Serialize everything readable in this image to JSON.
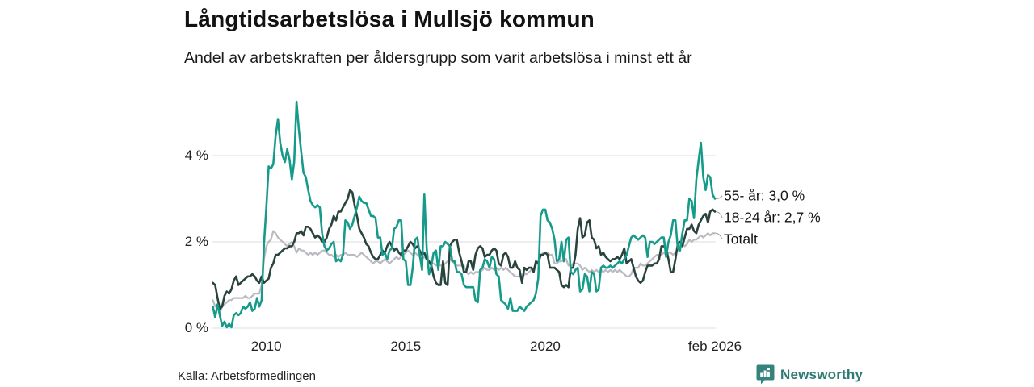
{
  "header": {
    "title": "Långtidsarbetslösa i Mullsjö kommun",
    "subtitle": "Andel av arbetskraften per åldersgrupp som varit arbetslösa i minst ett år"
  },
  "footer": {
    "source": "Källa: Arbetsförmedlingen",
    "brand": "Newsworthy"
  },
  "colors": {
    "series_55": "#169b8a",
    "series_1824": "#29433d",
    "series_total": "#b9b9c2",
    "grid": "#e4e4e4",
    "leader": "#999999",
    "brand_teal": "#35847c"
  },
  "chart_data": {
    "type": "line",
    "title": "Långtidsarbetslösa i Mullsjö kommun",
    "subtitle": "Andel av arbetskraften per åldersgrupp som varit arbetslösa i minst ett år",
    "x_start": "2008-02",
    "x_end": "2026-02",
    "x_interval": "monthly",
    "ylim": [
      0,
      5.5
    ],
    "grid": "horizontal",
    "legend_position": "right-end-labels",
    "yticks": [
      {
        "label": "0 %",
        "value": 0
      },
      {
        "label": "2 %",
        "value": 2
      },
      {
        "label": "4 %",
        "value": 4
      }
    ],
    "xticks": [
      {
        "label": "2010",
        "month_index": 23
      },
      {
        "label": "2015",
        "month_index": 83
      },
      {
        "label": "2020",
        "month_index": 143
      },
      {
        "label": "feb 2026",
        "month_index": 216
      }
    ],
    "end_labels": [
      {
        "text": "55- år: 3,0 %",
        "series": "55- år",
        "value": 3.0
      },
      {
        "text": "18-24 år: 2,7 %",
        "series": "18-24 år",
        "value": 2.7
      },
      {
        "text": "Totalt",
        "series": "Totalt",
        "value": 2.2
      }
    ],
    "series": [
      {
        "name": "55- år",
        "color": "#169b8a",
        "width": 2.6,
        "end_value": 3.0,
        "values": [
          0.5,
          0.25,
          0.55,
          0.3,
          0.05,
          0.15,
          0.02,
          0.1,
          0.02,
          0.3,
          0.35,
          0.3,
          0.35,
          0.5,
          0.45,
          0.5,
          0.6,
          0.4,
          0.45,
          0.7,
          0.5,
          0.65,
          1.95,
          2.8,
          3.75,
          3.7,
          3.8,
          4.45,
          4.85,
          4.3,
          4.0,
          3.85,
          4.15,
          3.9,
          3.45,
          3.85,
          5.25,
          4.6,
          4.1,
          3.6,
          3.5,
          3.2,
          2.95,
          2.85,
          2.8,
          2.85,
          2.8,
          2.2,
          1.9,
          1.8,
          1.85,
          1.95,
          2.0,
          1.55,
          1.6,
          1.55,
          1.7,
          2.5,
          2.45,
          2.3,
          2.4,
          2.6,
          2.8,
          3.05,
          2.95,
          2.9,
          2.9,
          2.75,
          2.6,
          2.6,
          2.55,
          2.1,
          2.1,
          1.7,
          1.75,
          1.6,
          1.8,
          1.85,
          2.3,
          2.35,
          2.5,
          2.5,
          1.6,
          1.55,
          1.0,
          1.0,
          1.4,
          2.05,
          2.1,
          1.7,
          1.35,
          3.1,
          1.85,
          1.25,
          1.45,
          1.75,
          1.8,
          1.35,
          1.9,
          1.9,
          2.0,
          1.95,
          1.9,
          1.55,
          1.55,
          1.3,
          1.3,
          1.25,
          1.0,
          0.95,
          0.95,
          0.95,
          0.95,
          0.65,
          0.6,
          1.35,
          1.4,
          1.6,
          1.55,
          1.4,
          1.65,
          1.6,
          1.25,
          1.2,
          0.65,
          0.6,
          0.55,
          0.45,
          0.7,
          0.4,
          0.4,
          0.4,
          0.5,
          0.45,
          0.4,
          0.5,
          0.55,
          0.6,
          0.65,
          0.8,
          1.15,
          2.6,
          2.75,
          2.75,
          2.5,
          2.45,
          2.3,
          2.05,
          1.55,
          1.6,
          2.0,
          1.55,
          2.05,
          2.1,
          1.3,
          1.25,
          1.35,
          1.4,
          0.85,
          0.9,
          1.25,
          1.2,
          0.85,
          1.3,
          1.25,
          0.85,
          0.9,
          1.4,
          1.45,
          1.4,
          1.4,
          1.45,
          1.4,
          1.45,
          1.5,
          1.55,
          1.5,
          1.6,
          1.7,
          1.9,
          2.1,
          2.15,
          2.1,
          2.05,
          2.1,
          2.15,
          2.1,
          1.65,
          2.0,
          2.0,
          1.95,
          2.0,
          2.05,
          2.1,
          2.1,
          1.65,
          2.0,
          2.15,
          2.5,
          2.5,
          1.85,
          1.8,
          2.2,
          2.5,
          2.5,
          3.0,
          2.95,
          2.55,
          3.45,
          3.9,
          4.3,
          3.5,
          3.2,
          3.55,
          3.5,
          3.1,
          3.0
        ]
      },
      {
        "name": "18-24 år",
        "color": "#29433d",
        "width": 2.6,
        "end_value": 2.7,
        "values": [
          1.05,
          1.0,
          0.7,
          0.45,
          0.5,
          0.75,
          0.85,
          0.8,
          0.9,
          1.1,
          1.2,
          1.0,
          1.05,
          1.1,
          1.15,
          1.2,
          1.2,
          1.25,
          1.2,
          1.1,
          1.05,
          1.2,
          1.05,
          1.1,
          1.15,
          1.4,
          1.5,
          1.7,
          1.7,
          1.75,
          1.8,
          1.85,
          1.85,
          1.9,
          1.9,
          2.0,
          2.2,
          2.2,
          2.25,
          2.15,
          2.35,
          2.35,
          2.3,
          2.2,
          2.1,
          2.15,
          2.1,
          2.0,
          2.0,
          2.1,
          2.3,
          2.4,
          2.6,
          2.5,
          2.7,
          2.7,
          2.8,
          2.9,
          3.0,
          3.2,
          3.15,
          2.85,
          2.6,
          2.3,
          2.2,
          2.1,
          1.95,
          1.9,
          1.75,
          1.65,
          1.6,
          1.6,
          1.7,
          1.8,
          1.75,
          1.9,
          2.0,
          1.9,
          1.8,
          1.85,
          1.75,
          1.7,
          1.8,
          1.8,
          1.9,
          2.0,
          1.95,
          1.85,
          1.9,
          1.8,
          1.7,
          1.75,
          1.6,
          1.55,
          1.45,
          1.2,
          1.05,
          1.0,
          1.0,
          1.55,
          1.05,
          1.0,
          1.9,
          2.0,
          2.05,
          2.05,
          1.75,
          1.55,
          1.3,
          1.3,
          1.55,
          1.55,
          1.35,
          1.7,
          1.85,
          1.9,
          1.85,
          1.65,
          1.7,
          1.7,
          1.8,
          1.85,
          1.8,
          1.5,
          1.45,
          1.7,
          1.75,
          1.65,
          1.4,
          1.4,
          1.55,
          1.4,
          1.35,
          1.05,
          1.4,
          1.35,
          1.4,
          1.4,
          1.3,
          1.55,
          1.5,
          1.7,
          1.7,
          1.75,
          1.7,
          1.4,
          1.4,
          1.4,
          1.35,
          1.3,
          1.0,
          0.95,
          1.0,
          0.95,
          1.4,
          1.4,
          1.7,
          2.3,
          2.55,
          2.1,
          2.15,
          2.45,
          2.5,
          2.1,
          2.05,
          1.85,
          1.9,
          1.7,
          1.75,
          1.65,
          1.6,
          1.55,
          1.6,
          1.6,
          1.65,
          1.6,
          1.7,
          1.85,
          1.5,
          1.55,
          1.6,
          1.4,
          1.2,
          1.1,
          1.05,
          1.1,
          1.3,
          1.45,
          1.45,
          1.45,
          1.5,
          1.5,
          1.6,
          1.9,
          1.9,
          1.85,
          1.6,
          1.3,
          1.3,
          1.6,
          1.95,
          2.0,
          1.9,
          2.1,
          2.3,
          2.3,
          2.4,
          2.25,
          2.2,
          2.4,
          2.5,
          2.6,
          2.65,
          2.45,
          2.7,
          2.75,
          2.7
        ]
      },
      {
        "name": "Totalt",
        "color": "#b9b9c2",
        "width": 2.2,
        "end_value": 2.2,
        "values": [
          0.65,
          0.5,
          0.55,
          0.35,
          0.5,
          0.55,
          0.6,
          0.65,
          0.65,
          0.7,
          0.7,
          0.7,
          0.7,
          0.7,
          0.75,
          0.7,
          0.7,
          0.75,
          0.8,
          0.8,
          0.8,
          1.0,
          1.6,
          1.9,
          2.0,
          2.05,
          2.25,
          2.2,
          2.1,
          2.05,
          2.0,
          1.95,
          1.9,
          1.95,
          2.0,
          1.9,
          1.75,
          1.85,
          1.8,
          1.8,
          1.75,
          1.7,
          1.75,
          1.7,
          1.75,
          1.7,
          1.75,
          1.8,
          1.8,
          1.75,
          1.7,
          1.7,
          1.65,
          1.7,
          1.65,
          1.7,
          1.7,
          1.75,
          1.7,
          1.7,
          1.7,
          1.7,
          1.65,
          1.7,
          1.75,
          1.7,
          1.65,
          1.6,
          1.55,
          1.5,
          1.55,
          1.55,
          1.5,
          1.55,
          1.6,
          1.55,
          1.5,
          1.55,
          1.6,
          1.65,
          1.6,
          1.65,
          1.7,
          1.75,
          1.8,
          1.75,
          1.7,
          1.75,
          1.7,
          1.65,
          1.6,
          1.65,
          1.6,
          1.55,
          1.5,
          1.5,
          1.45,
          1.5,
          1.45,
          1.45,
          1.5,
          1.55,
          1.6,
          1.55,
          1.5,
          1.45,
          1.45,
          1.45,
          1.45,
          1.3,
          1.25,
          1.3,
          1.25,
          1.3,
          1.3,
          1.3,
          1.35,
          1.4,
          1.35,
          1.35,
          1.4,
          1.35,
          1.4,
          1.35,
          1.4,
          1.35,
          1.4,
          1.35,
          1.3,
          1.25,
          1.2,
          1.2,
          1.2,
          1.15,
          1.25,
          1.25,
          1.3,
          1.35,
          1.4,
          1.45,
          1.55,
          1.65,
          1.75,
          1.75,
          1.75,
          1.7,
          1.7,
          1.5,
          1.5,
          1.55,
          1.55,
          1.6,
          1.6,
          1.45,
          1.45,
          1.5,
          1.5,
          1.5,
          1.45,
          1.35,
          1.4,
          1.35,
          1.3,
          1.35,
          1.3,
          1.35,
          1.3,
          1.35,
          1.3,
          1.35,
          1.3,
          1.35,
          1.3,
          1.35,
          1.3,
          1.35,
          1.3,
          1.25,
          1.2,
          1.2,
          1.25,
          1.4,
          1.4,
          1.4,
          1.5,
          1.45,
          1.45,
          1.5,
          1.55,
          1.6,
          1.65,
          1.7,
          1.7,
          1.7,
          1.75,
          1.7,
          1.75,
          1.75,
          1.7,
          1.75,
          1.8,
          1.9,
          1.95,
          1.9,
          1.95,
          2.05,
          2.0,
          2.05,
          2.05,
          2.1,
          2.15,
          2.1,
          2.15,
          2.2,
          2.15,
          2.2,
          2.2
        ]
      }
    ]
  }
}
